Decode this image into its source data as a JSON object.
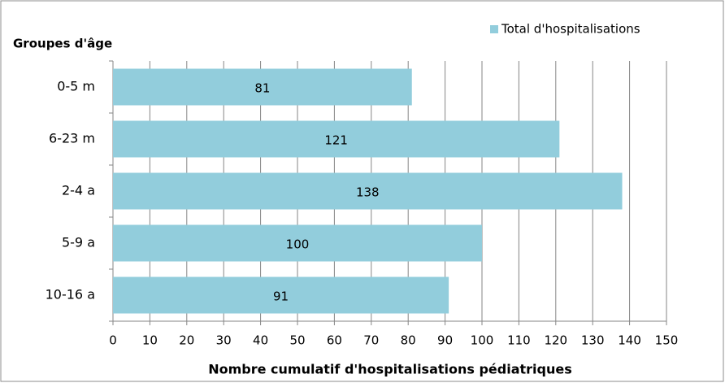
{
  "chart_data": {
    "type": "bar",
    "orientation": "horizontal",
    "y_label": "Groupes d'âge",
    "x_label": "Nombre cumulatif d'hospitalisations pédiatriques",
    "categories": [
      "0-5 m",
      "6-23 m",
      "2-4 a",
      "5-9 a",
      "10-16 a"
    ],
    "series": [
      {
        "name": "Total d'hospitalisations",
        "color": "#92cddc",
        "values": [
          81,
          121,
          138,
          100,
          91
        ]
      }
    ],
    "xlim": [
      0,
      150
    ],
    "xticks": [
      0,
      10,
      20,
      30,
      40,
      50,
      60,
      70,
      80,
      90,
      100,
      110,
      120,
      130,
      140,
      150
    ],
    "grid": true,
    "legend": "top-right"
  }
}
